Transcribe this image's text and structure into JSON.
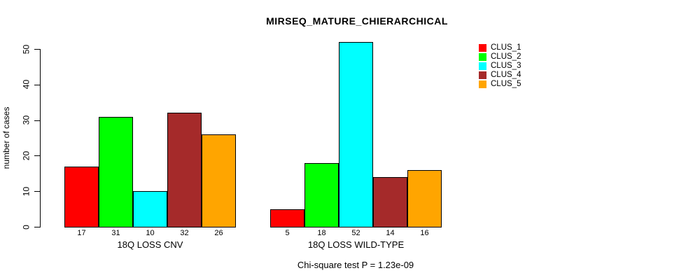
{
  "page": {
    "title": "MIRSEQ_MATURE_CHIERARCHICAL",
    "caption": "Chi-square test P = 1.23e-09"
  },
  "chart_data": {
    "type": "bar",
    "title": "MIRSEQ_MATURE_CHIERARCHICAL",
    "ylabel": "number of cases",
    "xlabel": "",
    "ylim": [
      0,
      50
    ],
    "yticks": [
      0,
      10,
      20,
      30,
      40,
      50
    ],
    "grid": false,
    "legend_position": "right",
    "categories": [
      "18Q LOSS CNV",
      "18Q LOSS WILD-TYPE"
    ],
    "series": [
      {
        "name": "CLUS_1",
        "color": "#ff0000",
        "values": [
          17,
          5
        ]
      },
      {
        "name": "CLUS_2",
        "color": "#00ff00",
        "values": [
          31,
          18
        ]
      },
      {
        "name": "CLUS_3",
        "color": "#00ffff",
        "values": [
          10,
          52
        ]
      },
      {
        "name": "CLUS_4",
        "color": "#a52a2a",
        "values": [
          32,
          14
        ]
      },
      {
        "name": "CLUS_5",
        "color": "#ffa500",
        "values": [
          26,
          16
        ]
      }
    ],
    "bar_value_labels": [
      [
        17,
        31,
        10,
        32,
        26
      ],
      [
        5,
        18,
        52,
        14,
        16
      ]
    ],
    "caption": "Chi-square test P = 1.23e-09"
  }
}
